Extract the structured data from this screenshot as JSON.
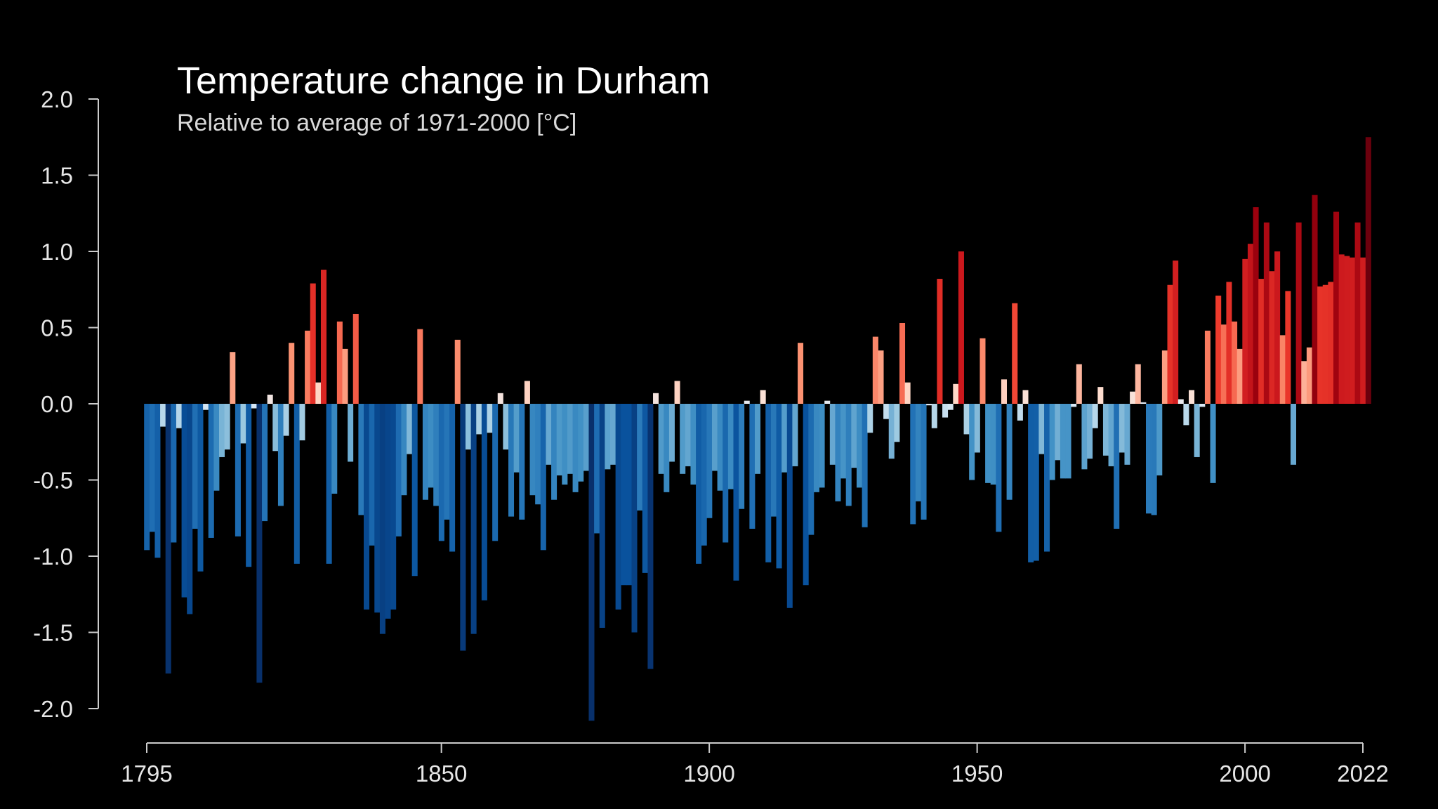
{
  "chart_data": {
    "type": "bar",
    "title": "Temperature change in Durham",
    "subtitle": "Relative to average of 1971-2000  [°C]",
    "xlabel": "",
    "ylabel": "",
    "ylim": [
      -2.0,
      2.0
    ],
    "xlim": [
      1795,
      2022
    ],
    "yticks": [
      "2.0",
      "1.5",
      "1.0",
      "0.5",
      "0.0",
      "-0.5",
      "-1.0",
      "-1.5",
      "-2.0"
    ],
    "xticks": [
      "1795",
      "1850",
      "1900",
      "1950",
      "2000",
      "2022"
    ],
    "grid": false,
    "start_year": 1795,
    "values": [
      -0.96,
      -0.84,
      -1.01,
      -0.15,
      -1.77,
      -0.91,
      -0.16,
      -1.27,
      -1.38,
      -0.82,
      -1.1,
      -0.04,
      -0.88,
      -0.57,
      -0.35,
      -0.3,
      0.34,
      -0.87,
      -0.26,
      -1.07,
      -0.03,
      -1.83,
      -0.77,
      0.06,
      -0.31,
      -0.67,
      -0.21,
      0.4,
      -1.05,
      -0.24,
      0.48,
      0.79,
      0.14,
      0.88,
      -1.05,
      -0.59,
      0.54,
      0.36,
      -0.38,
      0.59,
      -0.73,
      -1.35,
      -0.93,
      -1.37,
      -1.51,
      -1.41,
      -1.35,
      -0.87,
      -0.6,
      -0.33,
      -1.13,
      0.49,
      -0.63,
      -0.55,
      -0.67,
      -0.9,
      -0.76,
      -0.97,
      0.42,
      -1.62,
      -0.3,
      -1.51,
      -0.2,
      -1.29,
      -0.19,
      -0.9,
      0.07,
      -0.3,
      -0.74,
      -0.45,
      -0.76,
      0.15,
      -0.6,
      -0.66,
      -0.96,
      -0.4,
      -0.63,
      -0.47,
      -0.53,
      -0.46,
      -0.58,
      -0.51,
      -0.44,
      -2.08,
      -0.85,
      -1.47,
      -0.43,
      -0.4,
      -1.35,
      -1.19,
      -1.19,
      -1.5,
      -0.7,
      -1.11,
      -1.74,
      0.07,
      -0.46,
      -0.58,
      -0.38,
      0.15,
      -0.46,
      -0.41,
      -0.53,
      -1.05,
      -0.93,
      -0.75,
      -0.44,
      -0.57,
      -0.91,
      -0.56,
      -1.16,
      -0.69,
      0.02,
      -0.82,
      -0.46,
      0.09,
      -1.04,
      -0.74,
      -1.08,
      -0.45,
      -1.34,
      -0.41,
      0.4,
      -1.19,
      -0.86,
      -0.58,
      -0.55,
      0.02,
      -0.4,
      -0.64,
      -0.49,
      -0.67,
      -0.42,
      -0.55,
      -0.81,
      -0.19,
      0.44,
      0.35,
      -0.1,
      -0.36,
      -0.25,
      0.53,
      0.14,
      -0.79,
      -0.64,
      -0.76,
      -0.01,
      -0.16,
      0.82,
      -0.09,
      -0.04,
      0.13,
      1.0,
      -0.2,
      -0.5,
      -0.32,
      0.43,
      -0.52,
      -0.53,
      -0.84,
      0.16,
      -0.63,
      0.66,
      -0.11,
      0.09,
      -1.04,
      -1.03,
      -0.33,
      -0.97,
      -0.5,
      -0.37,
      -0.49,
      -0.49,
      -0.02,
      0.26,
      -0.43,
      -0.36,
      -0.16,
      0.11,
      -0.34,
      -0.41,
      -0.82,
      -0.32,
      -0.4,
      0.08,
      0.26,
      0.01,
      -0.72,
      -0.73,
      -0.47,
      0.35,
      0.78,
      0.94,
      0.03,
      -0.14,
      0.09,
      -0.35,
      -0.02,
      0.48,
      -0.52,
      0.71,
      0.52,
      0.8,
      0.54,
      0.36,
      0.95,
      1.05,
      1.29,
      0.82,
      1.19,
      0.87,
      1.0,
      0.45,
      0.74,
      -0.4,
      1.19,
      0.28,
      0.37,
      1.37,
      0.77,
      0.78,
      0.8,
      1.26,
      0.98,
      0.97,
      0.96,
      1.19,
      0.96,
      1.75
    ]
  },
  "colors": {
    "background": "#000000",
    "axis": "#cccccc",
    "title": "#ffffff",
    "subtitle": "#d9d9d9"
  }
}
